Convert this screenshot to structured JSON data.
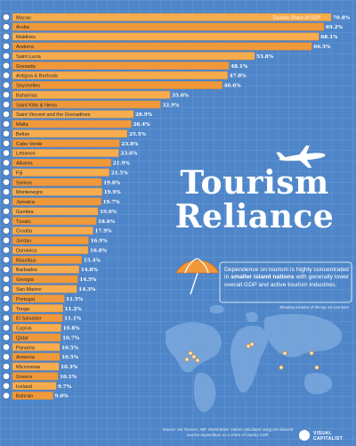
{
  "title": {
    "line1": "Tourism",
    "line2": "Reliance"
  },
  "description": {
    "before": "Dependence on tourism is highly concentrated in ",
    "bold": "smaller island nations",
    "after": " with generally lower overall GDP and active tourism industries."
  },
  "map_label": "Showing location of the top 10 countries",
  "source": "Source: UN Tourism, IMF, World Bank. Values calculated using UN inbound tourism expenditure as a share of country GDP.",
  "brand": {
    "line1": "VISUAL",
    "line2": "CAPITALIST"
  },
  "colors": {
    "bar": "#f0993a",
    "bar_highlight": "#f7ac4e",
    "background": "#4f86c9",
    "label": "#1c2530"
  },
  "chart_data": {
    "type": "bar",
    "orientation": "horizontal",
    "legend_label": "Tourism Share of GDP",
    "categories": [
      "Macao",
      "Aruba",
      "Maldives",
      "Andorra",
      "Saint Lucia",
      "Grenada",
      "Antigua & Barbuda",
      "Seychelles",
      "Bahamas",
      "Saint Kitts & Nevis",
      "Saint Vincent and the Grenadines",
      "Malta",
      "Belize",
      "Cabo Verde",
      "Lebanon",
      "Albania",
      "Fiji",
      "Samoa",
      "Montenegro",
      "Jamaica",
      "Gambia",
      "Tuvalu",
      "Croatia",
      "Jordan",
      "Dominica",
      "Mauritius",
      "Barbados",
      "Georgia",
      "San Marino",
      "Portugal",
      "Tonga",
      "El Salvador",
      "Cyprus",
      "Qatar",
      "Panama",
      "Armenia",
      "Micronesia",
      "Greece",
      "Iceland",
      "Bahrain"
    ],
    "values": [
      70.8,
      69.2,
      68.1,
      66.5,
      53.8,
      48.1,
      47.8,
      46.6,
      35.0,
      32.9,
      26.9,
      26.4,
      25.5,
      23.8,
      23.6,
      21.9,
      21.5,
      19.8,
      19.9,
      19.7,
      19.0,
      18.6,
      17.9,
      16.9,
      16.8,
      15.4,
      14.8,
      14.5,
      14.3,
      11.5,
      11.2,
      11.1,
      10.8,
      10.7,
      10.5,
      10.5,
      10.3,
      10.1,
      9.7,
      9.0
    ],
    "labels": [
      "70.8%",
      "69.2%",
      "68.1%",
      "66.5%",
      "53.8%",
      "48.1%",
      "47.8%",
      "46.6%",
      "35.0%",
      "32.9%",
      "26.9%",
      "26.4%",
      "25.5%",
      "23.8%",
      "23.6%",
      "21.9%",
      "21.5%",
      "19.8%",
      "19.9%",
      "19.7%",
      "19.0%",
      "18.6%",
      "17.9%",
      "16.9%",
      "16.8%",
      "15.4%",
      "14.8%",
      "14.5%",
      "14.3%",
      "11.5%",
      "11.2%",
      "11.1%",
      "10.8%",
      "10.7%",
      "10.5%",
      "10.5%",
      "10.3%",
      "10.1%",
      "9.7%",
      "9.0%"
    ],
    "xlim": [
      0,
      70.8
    ]
  }
}
